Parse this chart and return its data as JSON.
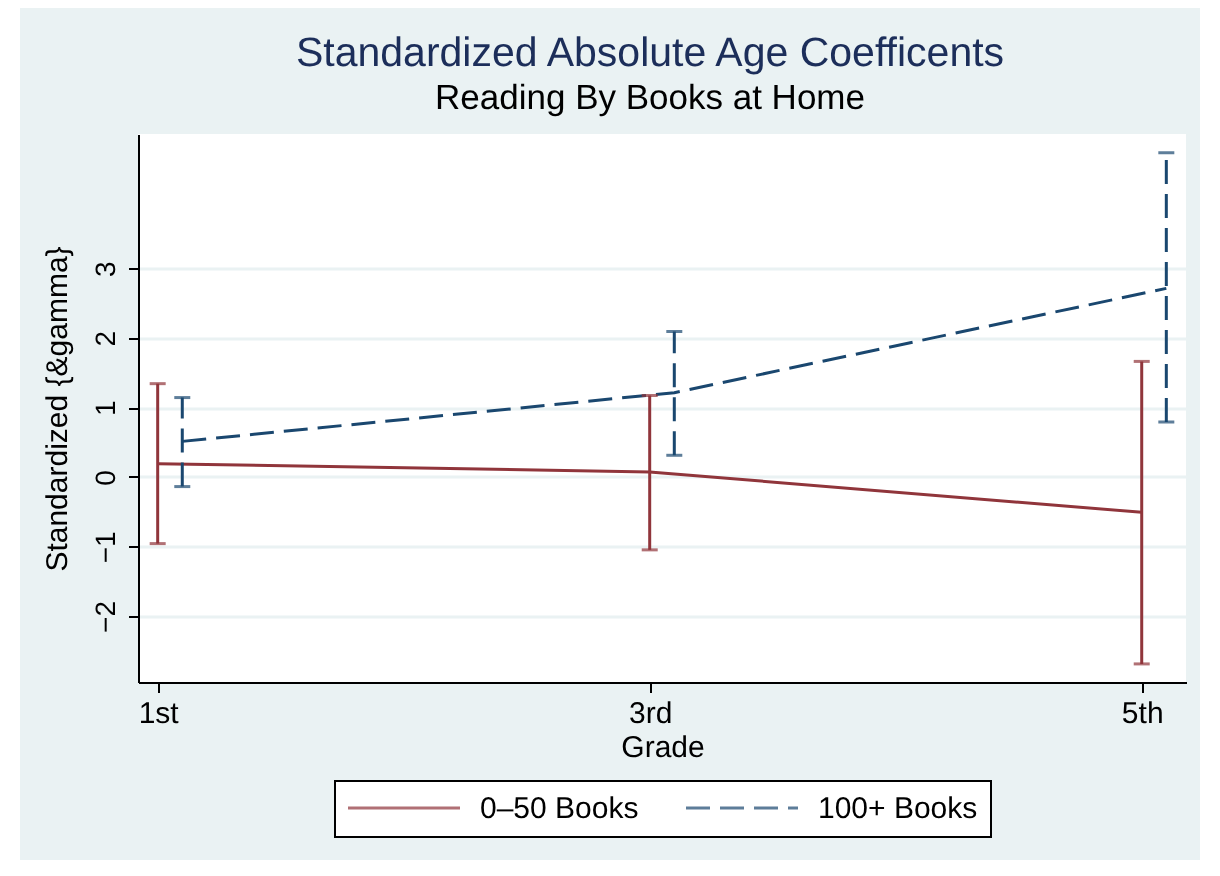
{
  "chart_data": {
    "type": "line",
    "title": "Standardized Absolute Age Coefficents",
    "subtitle": "Reading By Books at Home",
    "xlabel": "Grade",
    "ylabel": "Standardized {&gamma}",
    "x": [
      1,
      3,
      5
    ],
    "xlim": [
      0.92,
      5.18
    ],
    "xticks": [
      {
        "value": 1,
        "label": "1st"
      },
      {
        "value": 3,
        "label": "3rd"
      },
      {
        "value": 5,
        "label": "5th"
      }
    ],
    "ylim": [
      -2.95,
      4.93
    ],
    "yticks": [
      -2,
      -1,
      0,
      1,
      2,
      3
    ],
    "grid": "y",
    "legend": "bottom",
    "series": [
      {
        "name": "0–50 Books",
        "color": "#90353b",
        "line_style": "solid",
        "values": [
          0.19,
          0.07,
          -0.51
        ],
        "errors": [
          [
            -0.96,
            1.34
          ],
          [
            -1.05,
            1.17
          ],
          [
            -2.69,
            1.66
          ]
        ]
      },
      {
        "name": "100+ Books",
        "color": "#1a476f",
        "line_style": "dashed",
        "x": [
          1.1,
          3.1,
          5.1
        ],
        "values": [
          0.51,
          1.21,
          2.71
        ],
        "errors": [
          [
            -0.14,
            1.14
          ],
          [
            0.31,
            2.09
          ],
          [
            0.79,
            4.66
          ]
        ]
      }
    ]
  }
}
